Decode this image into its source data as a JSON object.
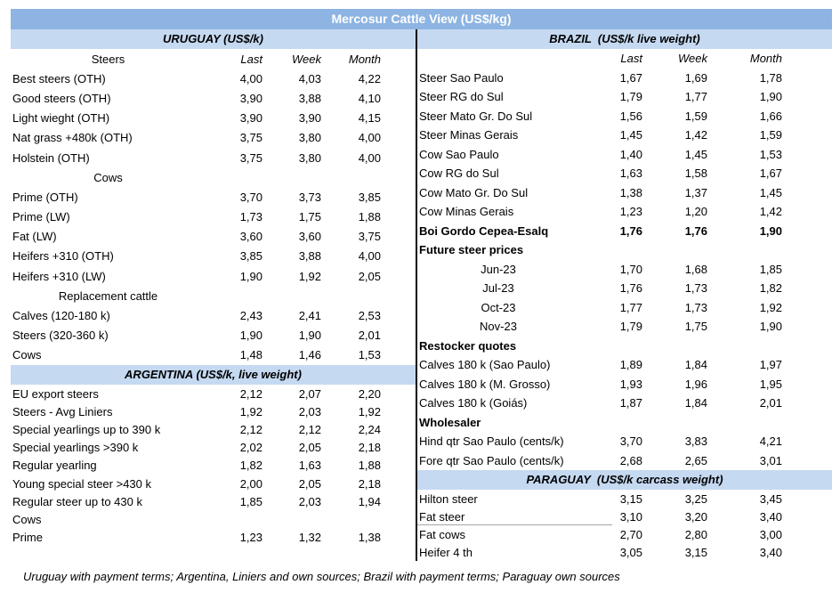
{
  "title": "Mercosur Cattle View (US$/kg)",
  "footnote": "Uruguay with payment terms; Argentina, Liniers and own sources; Brazil with payment terms; Paraguay own sources",
  "columns": [
    "Last",
    "Week",
    "Month"
  ],
  "colors": {
    "title_bar_bg": "#8db4e2",
    "title_bar_text": "#ffffff",
    "section_header_bg": "#c5d9f1",
    "divider": "#000000"
  },
  "left_panel": {
    "sections": [
      {
        "key": "uruguay",
        "header": "URUGUAY (US$/k)",
        "rows": [
          {
            "label": "Steers",
            "values": [
              "Last",
              "Week",
              "Month"
            ],
            "style": "colheader"
          },
          {
            "label": "Best steers (OTH)",
            "values": [
              "4,00",
              "4,03",
              "4,22"
            ]
          },
          {
            "label": "Good steers (OTH)",
            "values": [
              "3,90",
              "3,88",
              "4,10"
            ]
          },
          {
            "label": "Light wieght (OTH)",
            "values": [
              "3,90",
              "3,90",
              "4,15"
            ]
          },
          {
            "label": "Nat grass +480k (OTH)",
            "values": [
              "3,75",
              "3,80",
              "4,00"
            ]
          },
          {
            "label": "Holstein (OTH)",
            "values": [
              "3,75",
              "3,80",
              "4,00"
            ]
          },
          {
            "label": "Cows",
            "style": "center"
          },
          {
            "label": "Prime (OTH)",
            "values": [
              "3,70",
              "3,73",
              "3,85"
            ]
          },
          {
            "label": "Prime (LW)",
            "values": [
              "1,73",
              "1,75",
              "1,88"
            ]
          },
          {
            "label": "Fat (LW)",
            "values": [
              "3,60",
              "3,60",
              "3,75"
            ]
          },
          {
            "label": "Heifers +310 (OTH)",
            "values": [
              "3,85",
              "3,88",
              "4,00"
            ]
          },
          {
            "label": "Heifers +310 (LW)",
            "values": [
              "1,90",
              "1,92",
              "2,05"
            ]
          },
          {
            "label": "Replacement cattle",
            "style": "center"
          },
          {
            "label": "Calves (120-180 k)",
            "values": [
              "2,43",
              "2,41",
              "2,53"
            ]
          },
          {
            "label": "Steers (320-360 k)",
            "values": [
              "1,90",
              "1,90",
              "2,01"
            ]
          },
          {
            "label": "Cows",
            "values": [
              "1,48",
              "1,46",
              "1,53"
            ]
          }
        ]
      },
      {
        "key": "argentina",
        "header": "ARGENTINA (US$/k, live weight)",
        "rows": [
          {
            "label": "EU export steers",
            "values": [
              "2,12",
              "2,07",
              "2,20"
            ]
          },
          {
            "label": "Steers - Avg Liniers",
            "values": [
              "1,92",
              "2,03",
              "1,92"
            ]
          },
          {
            "label": "Special yearlings up to 390 k",
            "values": [
              "2,12",
              "2,12",
              "2,24"
            ]
          },
          {
            "label": "Special yearlings >390 k",
            "values": [
              "2,02",
              "2,05",
              "2,18"
            ]
          },
          {
            "label": "Regular yearling",
            "values": [
              "1,82",
              "1,63",
              "1,88"
            ]
          },
          {
            "label": "Young special steer >430 k",
            "values": [
              "2,00",
              "2,05",
              "2,18"
            ]
          },
          {
            "label": "Regular steer up to 430 k",
            "values": [
              "1,85",
              "2,03",
              "1,94"
            ]
          },
          {
            "label": "Cows"
          },
          {
            "label": "Prime",
            "values": [
              "1,23",
              "1,32",
              "1,38"
            ]
          }
        ]
      }
    ]
  },
  "right_panel": {
    "sections": [
      {
        "key": "brazil",
        "header": "BRAZIL  (US$/k live weight)",
        "rows": [
          {
            "label": "",
            "values": [
              "Last",
              "Week",
              "Month"
            ],
            "style": "colheader"
          },
          {
            "label": "Steer Sao Paulo",
            "values": [
              "1,67",
              "1,69",
              "1,78"
            ]
          },
          {
            "label": "Steer RG do Sul",
            "values": [
              "1,79",
              "1,77",
              "1,90"
            ]
          },
          {
            "label": "Steer Mato Gr. Do Sul",
            "values": [
              "1,56",
              "1,59",
              "1,66"
            ]
          },
          {
            "label": "Steer Minas Gerais",
            "values": [
              "1,45",
              "1,42",
              "1,59"
            ]
          },
          {
            "label": "Cow Sao Paulo",
            "values": [
              "1,40",
              "1,45",
              "1,53"
            ]
          },
          {
            "label": "Cow RG do Sul",
            "values": [
              "1,63",
              "1,58",
              "1,67"
            ]
          },
          {
            "label": "Cow Mato Gr. Do Sul",
            "values": [
              "1,38",
              "1,37",
              "1,45"
            ]
          },
          {
            "label": "Cow Minas Gerais",
            "values": [
              "1,23",
              "1,20",
              "1,42"
            ]
          },
          {
            "label": "Boi Gordo Cepea-Esalq",
            "values": [
              "1,76",
              "1,76",
              "1,90"
            ],
            "style": "bold"
          },
          {
            "label": "Future steer prices",
            "style": "bold"
          },
          {
            "label": "Jun-23",
            "values": [
              "1,70",
              "1,68",
              "1,85"
            ],
            "style": "center"
          },
          {
            "label": "Jul-23",
            "values": [
              "1,76",
              "1,73",
              "1,82"
            ],
            "style": "center"
          },
          {
            "label": "Oct-23",
            "values": [
              "1,77",
              "1,73",
              "1,92"
            ],
            "style": "center"
          },
          {
            "label": "Nov-23",
            "values": [
              "1,79",
              "1,75",
              "1,90"
            ],
            "style": "center"
          },
          {
            "label": "Restocker quotes",
            "style": "bold"
          },
          {
            "label": "Calves 180 k (Sao Paulo)",
            "values": [
              "1,89",
              "1,84",
              "1,97"
            ]
          },
          {
            "label": "Calves 180 k (M. Grosso)",
            "values": [
              "1,93",
              "1,96",
              "1,95"
            ]
          },
          {
            "label": "Calves 180 k (Goiás)",
            "values": [
              "1,87",
              "1,84",
              "2,01"
            ]
          },
          {
            "label": "Wholesaler",
            "style": "bold"
          },
          {
            "label": "Hind qtr Sao Paulo (cents/k)",
            "values": [
              "3,70",
              "3,83",
              "4,21"
            ]
          },
          {
            "label": "Fore qtr Sao Paulo (cents/k)",
            "values": [
              "2,68",
              "2,65",
              "3,01"
            ]
          }
        ]
      },
      {
        "key": "paraguay",
        "header": "PARAGUAY  (US$/k carcass weight)",
        "rows": [
          {
            "label": "Hilton steer",
            "values": [
              "3,15",
              "3,25",
              "3,45"
            ]
          },
          {
            "label": "Fat steer",
            "values": [
              "3,10",
              "3,20",
              "3,40"
            ],
            "underline": true
          },
          {
            "label": "Fat cows",
            "values": [
              "2,70",
              "2,80",
              "3,00"
            ]
          },
          {
            "label": "Heifer 4 th",
            "values": [
              "3,05",
              "3,15",
              "3,40"
            ]
          }
        ]
      }
    ]
  }
}
